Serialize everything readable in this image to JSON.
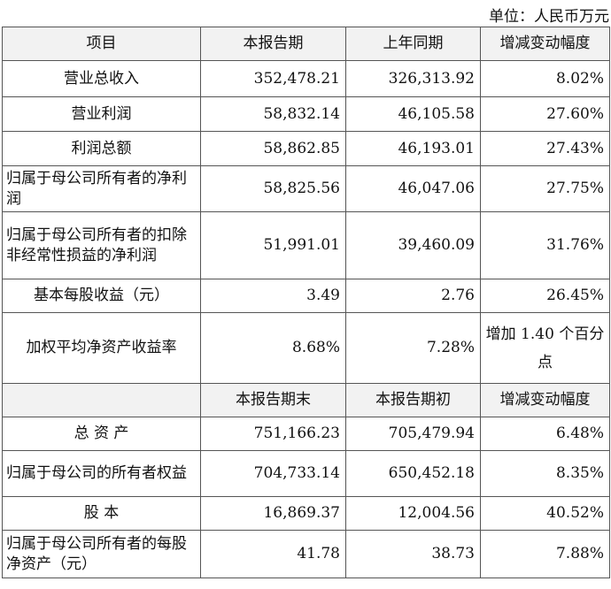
{
  "unit_text": "单位：人民币万元",
  "header1": [
    "项目",
    "本报告期",
    "上年同期",
    "增减变动幅度"
  ],
  "rows1": [
    {
      "label": "营业总收入",
      "c1": "352,478.21",
      "c2": "326,313.92",
      "c3": "8.02%"
    },
    {
      "label": "营业利润",
      "c1": "58,832.14",
      "c2": "46,105.58",
      "c3": "27.60%"
    },
    {
      "label": "利润总额",
      "c1": "58,862.85",
      "c2": "46,193.01",
      "c3": "27.43%"
    },
    {
      "label": "归属于母公司所有者的净利润",
      "c1": "58,825.56",
      "c2": "46,047.06",
      "c3": "27.75%"
    },
    {
      "label": "归属于母公司所有者的扣除非经常性损益的净利润",
      "c1": "51,991.01",
      "c2": "39,460.09",
      "c3": "31.76%"
    },
    {
      "label": "基本每股收益（元）",
      "c1": "3.49",
      "c2": "2.76",
      "c3": "26.45%"
    },
    {
      "label": "加权平均净资产收益率",
      "c1": "8.68%",
      "c2": "7.28%",
      "c3": "增加 1.40 个百分点"
    }
  ],
  "header2": [
    "",
    "本报告期末",
    "本报告期初",
    "增减变动幅度"
  ],
  "rows2": [
    {
      "label": "总 资 产",
      "c1": "751,166.23",
      "c2": "705,479.94",
      "c3": "6.48%"
    },
    {
      "label": "归属于母公司的所有者权益",
      "c1": "704,733.14",
      "c2": "650,452.18",
      "c3": "8.35%"
    },
    {
      "label": "股 本",
      "c1": "16,869.37",
      "c2": "12,004.56",
      "c3": "40.52%"
    },
    {
      "label": "归属于母公司所有者的每股净资产（元）",
      "c1": "41.78",
      "c2": "38.73",
      "c3": "7.88%"
    }
  ]
}
